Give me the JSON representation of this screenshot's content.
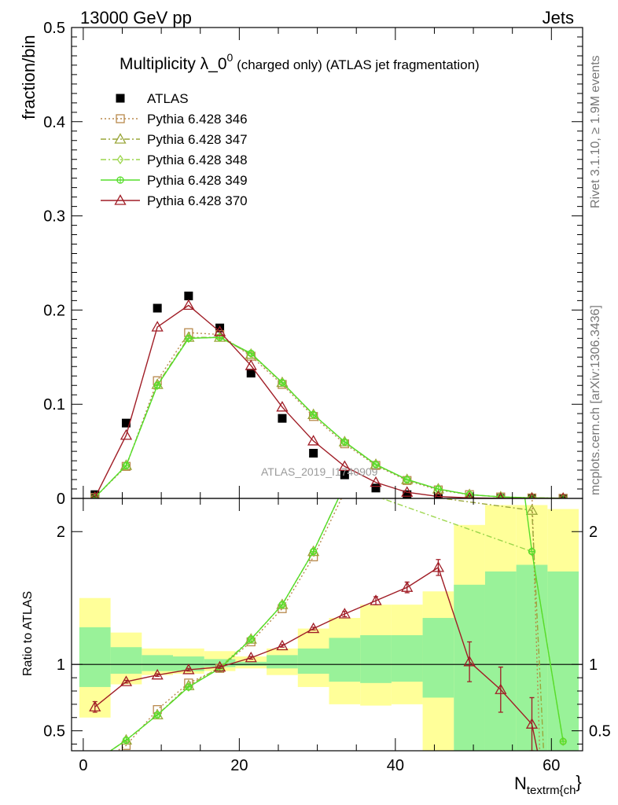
{
  "header": {
    "left": "13000 GeV pp",
    "right": "Jets"
  },
  "side_labels": {
    "rivet": "Rivet 3.1.10, ≥ 1.9M events",
    "mcplots": "mcplots.cern.ch [arXiv:1306.3436]"
  },
  "chart_data": [
    {
      "type": "line",
      "panel": "main",
      "title_main": "Multiplicity λ_0",
      "title_sup": "0",
      "title_rest": " (charged only) (ATLAS jet fragmentation)",
      "ylabel": "fraction/bin",
      "watermark": "ATLAS_2019_I1740909",
      "ylim": [
        0,
        0.5
      ],
      "yticks": [
        0,
        0.1,
        0.2,
        0.3,
        0.4,
        0.5
      ],
      "ytick_labels": [
        "0",
        "0.1",
        "0.2",
        "0.3",
        "0.4",
        "0.5"
      ],
      "x": [
        1.5,
        5.5,
        9.5,
        13.5,
        17.5,
        21.5,
        25.5,
        29.5,
        33.5,
        37.5,
        41.5,
        45.5,
        49.5,
        53.5,
        57.5,
        61.5
      ],
      "series": [
        {
          "name": "ATLAS",
          "color": "#000000",
          "marker": "square-filled",
          "line": "none",
          "values": [
            0.004,
            0.08,
            0.202,
            0.215,
            0.181,
            0.133,
            0.085,
            0.048,
            0.025,
            0.011,
            0.004,
            0.001,
            0.0005,
            0.0001,
            0.0,
            0.0
          ]
        },
        {
          "name": "Pythia 6.428 346",
          "color": "#b8894c",
          "marker": "square-open",
          "line": "dotted",
          "values": [
            0.001,
            0.034,
            0.125,
            0.176,
            0.174,
            0.151,
            0.121,
            0.087,
            0.058,
            0.035,
            0.019,
            0.009,
            0.004,
            0.0015,
            0.0005,
            0.0001
          ]
        },
        {
          "name": "Pythia 6.428 347",
          "color": "#9aa63a",
          "marker": "triangle-open",
          "line": "dashdot",
          "values": [
            0.001,
            0.035,
            0.121,
            0.171,
            0.171,
            0.153,
            0.123,
            0.089,
            0.06,
            0.036,
            0.02,
            0.01,
            0.004,
            0.0016,
            0.0006,
            0.0002
          ]
        },
        {
          "name": "Pythia 6.428 348",
          "color": "#9cd64c",
          "marker": "diamond-open",
          "line": "dashdot",
          "values": [
            0.001,
            0.035,
            0.12,
            0.17,
            0.171,
            0.154,
            0.123,
            0.089,
            0.06,
            0.036,
            0.02,
            0.01,
            0.004,
            0.0016,
            0.0006,
            0.0002
          ]
        },
        {
          "name": "Pythia 6.428 349",
          "color": "#55dd2a",
          "marker": "circle-cross",
          "line": "solid",
          "values": [
            0.001,
            0.035,
            0.12,
            0.17,
            0.171,
            0.154,
            0.123,
            0.089,
            0.06,
            0.036,
            0.02,
            0.01,
            0.004,
            0.0016,
            0.0006,
            0.0002
          ]
        },
        {
          "name": "Pythia 6.428 370",
          "color": "#a01d26",
          "marker": "triangle-open",
          "line": "solid",
          "values": [
            0.001,
            0.067,
            0.182,
            0.205,
            0.177,
            0.141,
            0.097,
            0.061,
            0.034,
            0.017,
            0.0065,
            0.002,
            0.0006,
            0.0001,
            0.0,
            0.0
          ]
        }
      ]
    },
    {
      "type": "line",
      "panel": "ratio",
      "ylabel": "Ratio to ATLAS",
      "xlabel_main": "N",
      "xlabel_sub": "textrm{ch",
      "xlabel_end": "}",
      "xlim": [
        -1.5,
        64
      ],
      "xticks": [
        0,
        20,
        40,
        60
      ],
      "xtick_labels": [
        "0",
        "20",
        "40",
        "60"
      ],
      "ylim": [
        0.35,
        2.25
      ],
      "yticks": [
        0.5,
        1,
        2
      ],
      "ytick_labels": [
        "0.5",
        "1",
        "2"
      ],
      "bands": [
        {
          "x0": -0.5,
          "x1": 3.5,
          "yellow": [
            0.6,
            1.5
          ],
          "green": [
            0.83,
            1.28
          ]
        },
        {
          "x0": 3.5,
          "x1": 7.5,
          "yellow": [
            0.85,
            1.24
          ],
          "green": [
            0.93,
            1.13
          ]
        },
        {
          "x0": 7.5,
          "x1": 11.5,
          "yellow": [
            0.92,
            1.12
          ],
          "green": [
            0.95,
            1.07
          ]
        },
        {
          "x0": 11.5,
          "x1": 15.5,
          "yellow": [
            0.93,
            1.12
          ],
          "green": [
            0.95,
            1.06
          ]
        },
        {
          "x0": 15.5,
          "x1": 19.5,
          "yellow": [
            0.95,
            1.1
          ],
          "green": [
            0.98,
            1.04
          ]
        },
        {
          "x0": 19.5,
          "x1": 23.5,
          "yellow": [
            0.97,
            1.06
          ],
          "green": [
            0.99,
            1.02
          ]
        },
        {
          "x0": 23.5,
          "x1": 27.5,
          "yellow": [
            0.92,
            1.12
          ],
          "green": [
            0.97,
            1.07
          ]
        },
        {
          "x0": 27.5,
          "x1": 31.5,
          "yellow": [
            0.83,
            1.27
          ],
          "green": [
            0.93,
            1.12
          ]
        },
        {
          "x0": 31.5,
          "x1": 35.5,
          "yellow": [
            0.7,
            1.35
          ],
          "green": [
            0.87,
            1.2
          ]
        },
        {
          "x0": 35.5,
          "x1": 39.5,
          "yellow": [
            0.69,
            1.45
          ],
          "green": [
            0.86,
            1.22
          ]
        },
        {
          "x0": 39.5,
          "x1": 43.5,
          "yellow": [
            0.7,
            1.45
          ],
          "green": [
            0.87,
            1.22
          ]
        },
        {
          "x0": 43.5,
          "x1": 47.5,
          "yellow": [
            0.35,
            1.55
          ],
          "green": [
            0.75,
            1.35
          ]
        },
        {
          "x0": 47.5,
          "x1": 51.5,
          "yellow": [
            0.4,
            2.05
          ],
          "green": [
            0.35,
            1.6
          ]
        },
        {
          "x0": 51.5,
          "x1": 55.5,
          "yellow": [
            0.35,
            2.2
          ],
          "green": [
            0.35,
            1.7
          ]
        },
        {
          "x0": 55.5,
          "x1": 59.5,
          "yellow": [
            0.35,
            2.2
          ],
          "green": [
            0.35,
            1.75
          ]
        },
        {
          "x0": 59.5,
          "x1": 63.5,
          "yellow": [
            0.35,
            2.17
          ],
          "green": [
            0.35,
            1.7
          ]
        }
      ],
      "x": [
        1.5,
        5.5,
        9.5,
        13.5,
        17.5,
        21.5,
        25.5,
        29.5,
        33.5,
        37.5,
        41.5,
        45.5,
        49.5,
        53.5,
        57.5,
        61.5
      ],
      "series": [
        {
          "name": "Pythia 6.428 346",
          "color": "#b8894c",
          "marker": "square-open",
          "line": "dotted",
          "x": [
            1.5,
            5.5,
            9.5,
            13.5,
            17.5,
            21.5,
            25.5,
            29.5,
            33.5,
            57.5,
            58.5
          ],
          "values": [
            0.25,
            0.39,
            0.66,
            0.86,
            0.97,
            1.17,
            1.42,
            1.81,
            2.3,
            2.3,
            0.35
          ]
        },
        {
          "name": "Pythia 6.428 347",
          "color": "#9aa63a",
          "marker": "triangle-open",
          "line": "dashdot",
          "x": [
            1.5,
            5.5,
            9.5,
            13.5,
            17.5,
            21.5,
            25.5,
            29.5,
            33.5,
            57.5,
            59.0
          ],
          "values": [
            0.27,
            0.43,
            0.62,
            0.84,
            0.98,
            1.19,
            1.45,
            1.85,
            2.35,
            2.16,
            0.35
          ]
        },
        {
          "name": "Pythia 6.428 348",
          "color": "#9cd64c",
          "marker": "diamond-open",
          "line": "dashdot",
          "x": [
            1.5,
            5.5,
            9.5,
            13.5,
            17.5,
            21.5,
            25.5,
            29.5,
            33.5,
            57.5,
            61.5
          ],
          "values": [
            0.27,
            0.43,
            0.62,
            0.83,
            0.98,
            1.19,
            1.45,
            1.85,
            2.35,
            1.85,
            0.42
          ]
        },
        {
          "name": "Pythia 6.428 349",
          "color": "#55dd2a",
          "marker": "circle-cross",
          "line": "solid",
          "x": [
            1.5,
            5.5,
            9.5,
            13.5,
            17.5,
            21.5,
            25.5,
            29.5,
            33.5,
            56.5,
            57.5,
            61.5
          ],
          "values": [
            0.27,
            0.43,
            0.62,
            0.83,
            0.97,
            1.19,
            1.45,
            1.85,
            2.35,
            2.3,
            1.85,
            0.42
          ]
        },
        {
          "name": "Pythia 6.428 370",
          "color": "#a01d26",
          "marker": "triangle-open",
          "line": "solid",
          "x": [
            1.5,
            5.5,
            9.5,
            13.5,
            17.5,
            21.5,
            25.5,
            29.5,
            33.5,
            37.5,
            41.5,
            45.5,
            49.5,
            53.5,
            57.5,
            58.2
          ],
          "values": [
            0.68,
            0.87,
            0.92,
            0.96,
            0.98,
            1.05,
            1.14,
            1.27,
            1.38,
            1.48,
            1.58,
            1.73,
            1.02,
            0.81,
            0.55,
            0.35
          ],
          "errors": [
            0.04,
            0.01,
            0.01,
            0.01,
            0.01,
            0.01,
            0.01,
            0.01,
            0.02,
            0.03,
            0.04,
            0.06,
            0.15,
            0.17,
            0.2,
            0
          ]
        }
      ]
    }
  ]
}
